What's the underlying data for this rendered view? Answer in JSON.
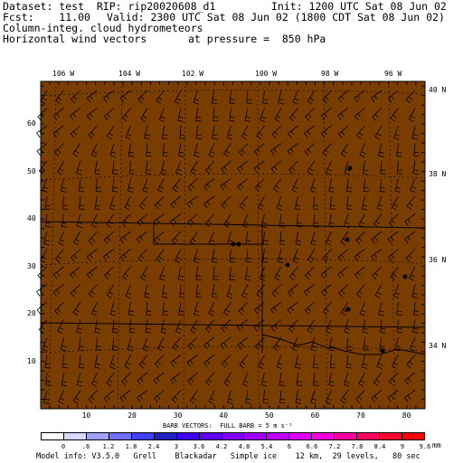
{
  "header": {
    "dataset": "Dataset: test  RIP: rip20020608_d1",
    "init": "Init: 1200 UTC Sat 08 Jun 02",
    "fcst": "Fcst:    11.00",
    "valid": "Valid: 2300 UTC Sat 08 Jun 02 (1800 CDT Sat 08 Jun 02)",
    "field1": "Column-integ. cloud hydrometeors",
    "field2": "Horizontal wind vectors",
    "pressure": "at pressure =  850 hPa"
  },
  "map": {
    "background_color": "#7a3d00",
    "top_lon_labels": [
      "106 W",
      "104 W",
      "102 W",
      "100 W",
      "98 W",
      "96 W"
    ],
    "right_lat_labels": [
      "40 N",
      "38 N",
      "36 N",
      "34 N"
    ],
    "x_ticks": [
      "10",
      "20",
      "30",
      "40",
      "50",
      "60",
      "70",
      "80"
    ],
    "y_ticks": [
      "10",
      "20",
      "30",
      "40",
      "50",
      "60"
    ]
  },
  "footer": {
    "barb_text": "BARB VECTORS:  FULL BARB = 5 m s⁻¹",
    "units": "mm",
    "colorbar_labels": [
      "0",
      ".6",
      "1.2",
      "1.8",
      "2.4",
      "3",
      "3.6",
      "4.2",
      "4.8",
      "5.4",
      "6",
      "6.6",
      "7.2",
      "7.8",
      "8.4",
      "9",
      "9.6"
    ],
    "colorbar_colors": [
      "#ffffff",
      "#d8d8ff",
      "#a0a0ff",
      "#7070ff",
      "#4040ff",
      "#2020c0",
      "#4000ff",
      "#6000ff",
      "#8000ff",
      "#a000ff",
      "#c000ff",
      "#e000ff",
      "#ff00e0",
      "#ff00a0",
      "#ff0060",
      "#ff0030",
      "#ff0000"
    ],
    "model_info": "Model info: V3.5.0   Grell    Blackadar   Simple ice    12 km,  29 levels,   80 sec"
  }
}
